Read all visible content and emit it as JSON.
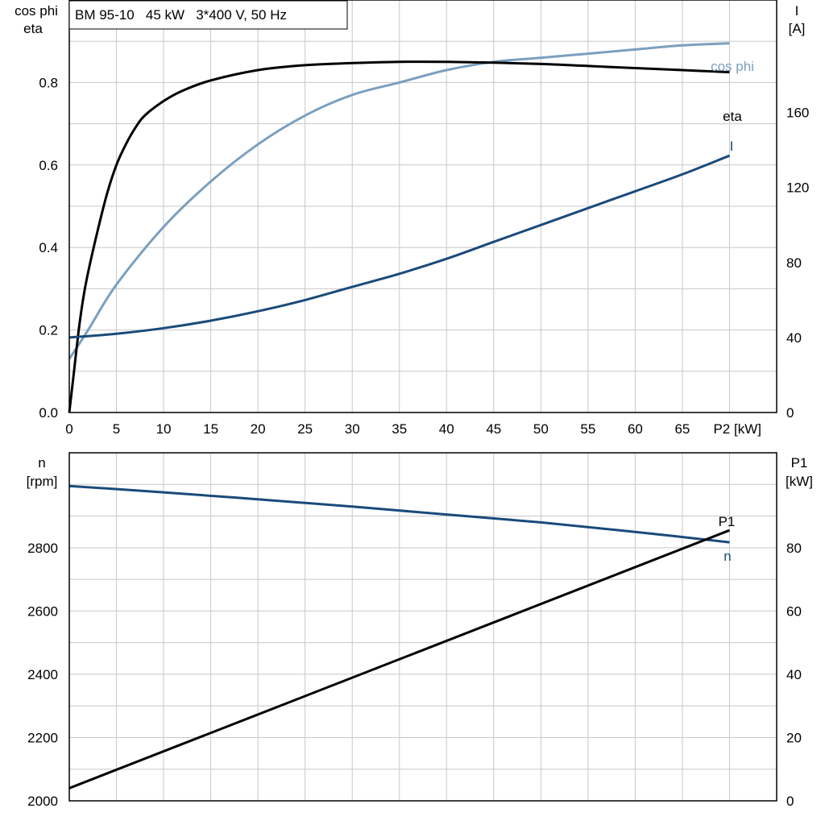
{
  "chart_data": [
    {
      "type": "line",
      "title": "BM 95-10   45 kW   3*400 V, 50 Hz",
      "xlabel": "P2 [kW]",
      "xlim": [
        0,
        75
      ],
      "x_ticks": [
        "0",
        "5",
        "10",
        "15",
        "20",
        "25",
        "30",
        "35",
        "40",
        "45",
        "50",
        "55",
        "60",
        "65",
        "P2 [kW]"
      ],
      "left_axis": {
        "label_line1": "cos phi",
        "label_line2": "eta",
        "ylim": [
          0,
          1.0
        ],
        "ticks": [
          "0.0",
          "0.2",
          "0.4",
          "0.6",
          "0.8"
        ]
      },
      "right_axis": {
        "label_line1": "I",
        "label_line2": "[A]",
        "ylim": [
          0,
          220
        ],
        "ticks": [
          "0",
          "40",
          "80",
          "120",
          "160"
        ]
      },
      "grid": true,
      "series": [
        {
          "name": "cos phi",
          "axis": "left",
          "color": "#7b9fbf",
          "x": [
            0,
            2,
            5,
            10,
            15,
            20,
            25,
            30,
            35,
            40,
            45,
            50,
            55,
            60,
            65,
            70
          ],
          "y": [
            0.13,
            0.2,
            0.31,
            0.45,
            0.56,
            0.65,
            0.72,
            0.77,
            0.8,
            0.83,
            0.85,
            0.86,
            0.87,
            0.88,
            0.89,
            0.895
          ]
        },
        {
          "name": "eta",
          "axis": "left",
          "color": "#000000",
          "x": [
            0,
            0.5,
            1,
            1.5,
            2,
            3,
            4,
            5,
            6,
            7,
            8,
            10,
            12,
            15,
            20,
            25,
            30,
            35,
            40,
            45,
            50,
            55,
            60,
            65,
            70
          ],
          "y": [
            0.0,
            0.1,
            0.2,
            0.28,
            0.34,
            0.44,
            0.53,
            0.6,
            0.65,
            0.69,
            0.72,
            0.755,
            0.78,
            0.805,
            0.83,
            0.842,
            0.847,
            0.85,
            0.85,
            0.848,
            0.845,
            0.84,
            0.835,
            0.83,
            0.825
          ]
        },
        {
          "name": "I",
          "axis": "right",
          "color": "#1a4a7a",
          "x": [
            0,
            5,
            10,
            15,
            20,
            25,
            30,
            35,
            40,
            45,
            50,
            55,
            60,
            65,
            70
          ],
          "y": [
            40,
            42,
            45,
            49,
            54,
            60,
            67,
            74,
            82,
            91,
            100,
            109,
            118,
            127,
            137
          ]
        }
      ]
    },
    {
      "type": "line",
      "xlim": [
        0,
        75
      ],
      "left_axis": {
        "label_line1": "n",
        "label_line2": "[rpm]",
        "ylim": [
          2000,
          3100
        ],
        "ticks": [
          "2000",
          "2200",
          "2400",
          "2600",
          "2800"
        ]
      },
      "right_axis": {
        "label_line1": "P1",
        "label_line2": "[kW]",
        "ylim": [
          0,
          110
        ],
        "ticks": [
          "0",
          "20",
          "40",
          "60",
          "80"
        ]
      },
      "grid": true,
      "series": [
        {
          "name": "n",
          "axis": "left",
          "color": "#1a4a7a",
          "x": [
            0,
            10,
            20,
            30,
            40,
            50,
            60,
            70
          ],
          "y": [
            2995,
            2975,
            2953,
            2930,
            2905,
            2880,
            2850,
            2817
          ]
        },
        {
          "name": "P1",
          "axis": "right",
          "color": "#000000",
          "x": [
            0,
            70
          ],
          "y": [
            4,
            85.5
          ]
        }
      ]
    }
  ]
}
